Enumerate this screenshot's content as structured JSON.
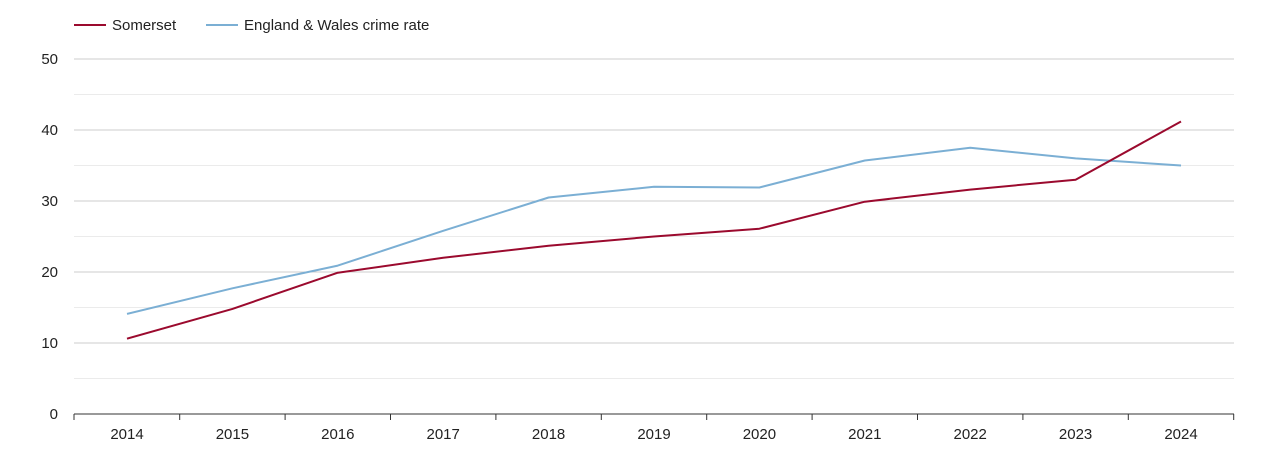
{
  "chart_data": {
    "type": "line",
    "title": "",
    "xlabel": "",
    "ylabel": "",
    "x": [
      "2014",
      "2015",
      "2016",
      "2017",
      "2018",
      "2019",
      "2020",
      "2021",
      "2022",
      "2023",
      "2024"
    ],
    "ylim": [
      0,
      50
    ],
    "yticks": [
      "0",
      "10",
      "20",
      "30",
      "40",
      "50"
    ],
    "grid": true,
    "legend_position": "top-left",
    "series": [
      {
        "name": "Somerset",
        "color": "#9b0a2e",
        "values": [
          10.6,
          14.8,
          19.9,
          22.0,
          23.7,
          25.0,
          26.1,
          29.9,
          31.6,
          33.0,
          41.2
        ]
      },
      {
        "name": "England & Wales crime rate",
        "color": "#7bafd4",
        "values": [
          14.1,
          17.7,
          20.9,
          25.8,
          30.5,
          32.0,
          31.9,
          35.7,
          37.5,
          36.0,
          35.0
        ]
      }
    ]
  }
}
